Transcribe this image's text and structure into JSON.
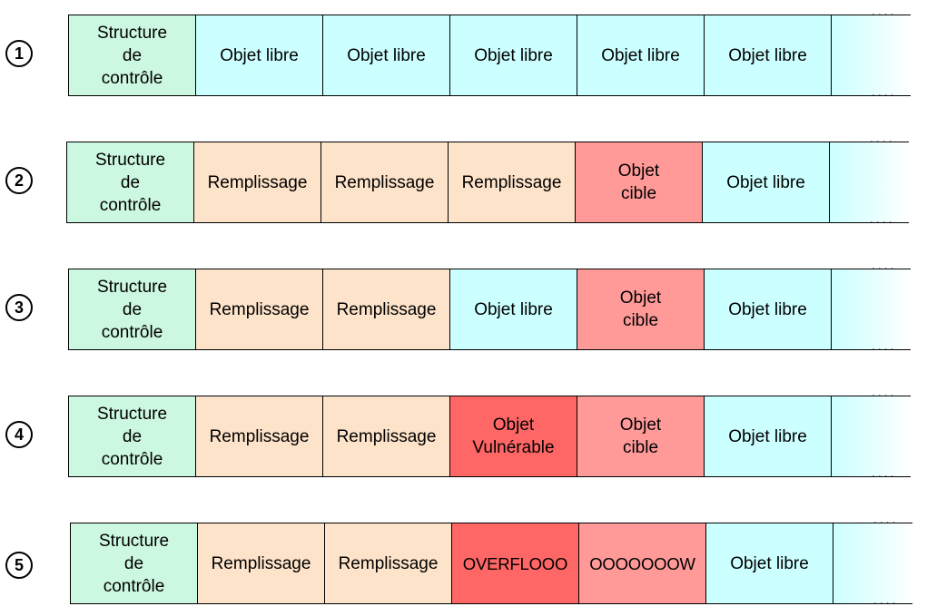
{
  "rows": [
    {
      "id": "1",
      "cells": [
        {
          "text": "Structure\nde\ncontrôle",
          "kind": "control"
        },
        {
          "text": "Objet libre",
          "kind": "free"
        },
        {
          "text": "Objet libre",
          "kind": "free"
        },
        {
          "text": "Objet libre",
          "kind": "free"
        },
        {
          "text": "Objet libre",
          "kind": "free"
        },
        {
          "text": "Objet libre",
          "kind": "free"
        }
      ]
    },
    {
      "id": "2",
      "cells": [
        {
          "text": "Structure\nde\ncontrôle",
          "kind": "control"
        },
        {
          "text": "Remplissage",
          "kind": "fill"
        },
        {
          "text": "Remplissage",
          "kind": "fill"
        },
        {
          "text": "Remplissage",
          "kind": "fill"
        },
        {
          "text": "Objet\ncible",
          "kind": "target"
        },
        {
          "text": "Objet libre",
          "kind": "free"
        }
      ]
    },
    {
      "id": "3",
      "cells": [
        {
          "text": "Structure\nde\ncontrôle",
          "kind": "control"
        },
        {
          "text": "Remplissage",
          "kind": "fill"
        },
        {
          "text": "Remplissage",
          "kind": "fill"
        },
        {
          "text": "Objet libre",
          "kind": "free"
        },
        {
          "text": "Objet\ncible",
          "kind": "target"
        },
        {
          "text": "Objet libre",
          "kind": "free"
        }
      ]
    },
    {
      "id": "4",
      "cells": [
        {
          "text": "Structure\nde\ncontrôle",
          "kind": "control"
        },
        {
          "text": "Remplissage",
          "kind": "fill"
        },
        {
          "text": "Remplissage",
          "kind": "fill"
        },
        {
          "text": "Objet\nVulnérable",
          "kind": "vuln"
        },
        {
          "text": "Objet\ncible",
          "kind": "target"
        },
        {
          "text": "Objet libre",
          "kind": "free"
        }
      ]
    },
    {
      "id": "5",
      "cells": [
        {
          "text": "Structure\nde\ncontrôle",
          "kind": "control"
        },
        {
          "text": "Remplissage",
          "kind": "fill"
        },
        {
          "text": "Remplissage",
          "kind": "fill"
        },
        {
          "text": "OVERFLOOO",
          "kind": "vuln over"
        },
        {
          "text": "OOOOOOOW",
          "kind": "target over"
        },
        {
          "text": "Objet libre",
          "kind": "free"
        }
      ]
    }
  ],
  "continuation": "....",
  "colors": {
    "control": "#ccf7e0",
    "free": "#ccffff",
    "fill": "#fde3c9",
    "target": "#ff9a99",
    "vuln": "#ff6666"
  }
}
